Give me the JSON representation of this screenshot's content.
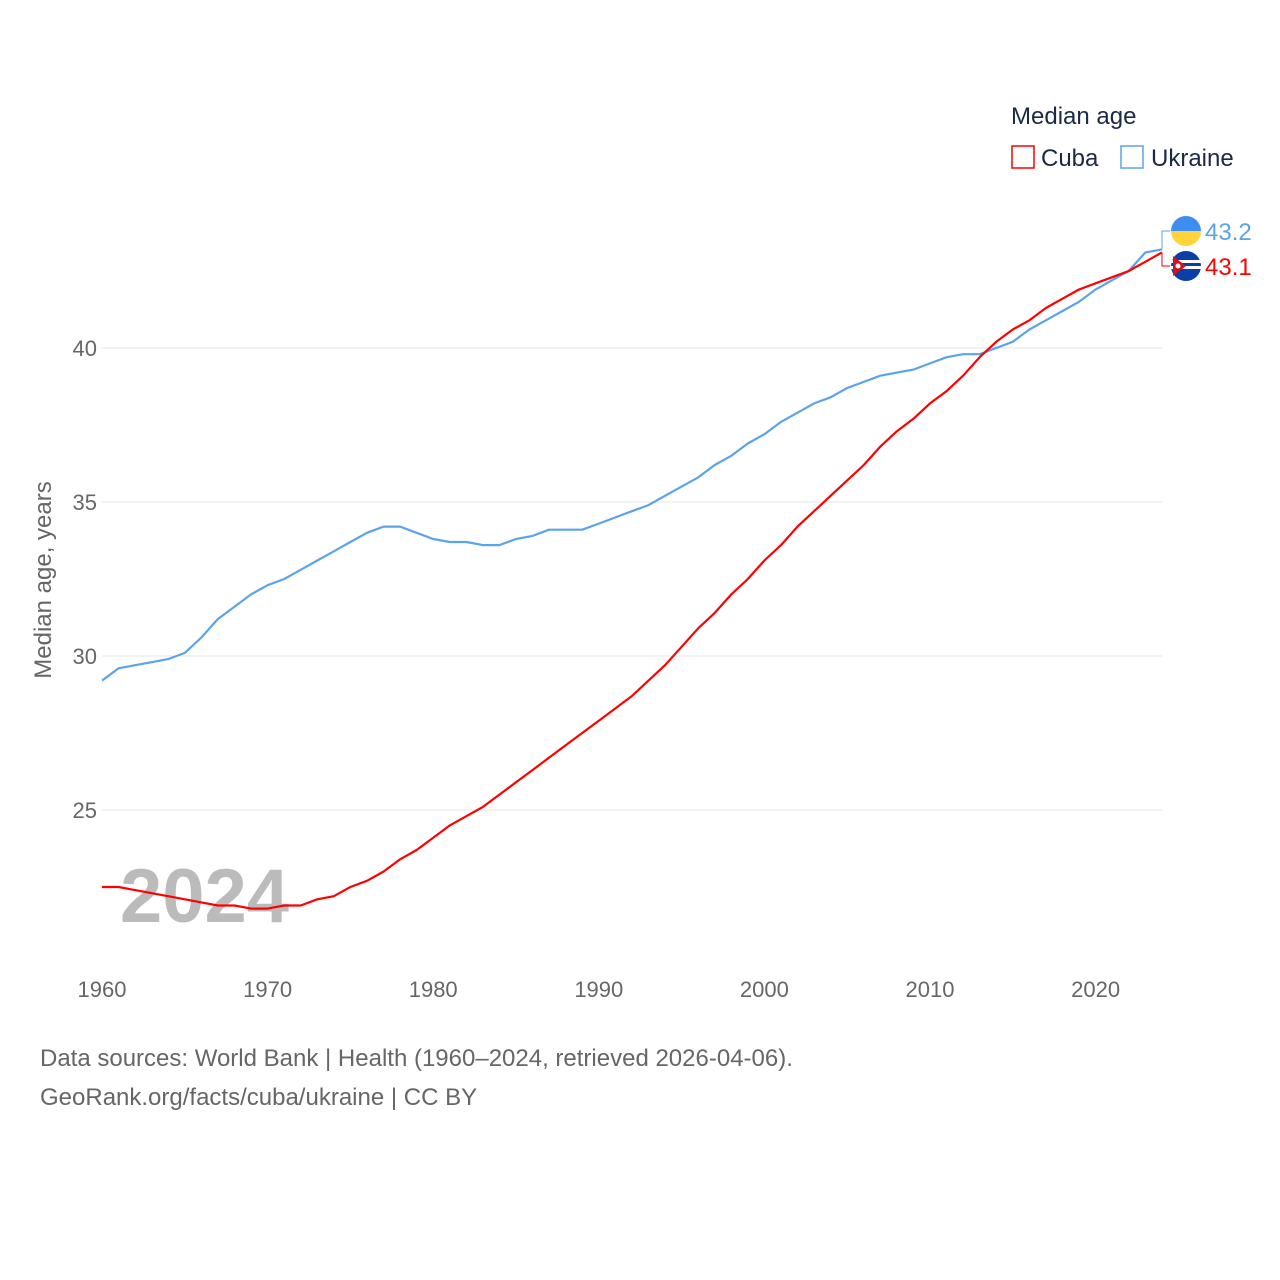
{
  "chart_data": {
    "type": "line",
    "title": "",
    "xlabel": "",
    "ylabel": "Median age, years",
    "xlim": [
      1960,
      2024
    ],
    "ylim": [
      21,
      44.5
    ],
    "x_ticks": [
      1960,
      1970,
      1980,
      1990,
      2000,
      2010,
      2020
    ],
    "y_ticks": [
      25,
      30,
      35,
      40
    ],
    "grid": true,
    "legend": {
      "title": "Median age",
      "position": "top-right"
    },
    "year_watermark": "2024",
    "x": [
      1960,
      1961,
      1962,
      1963,
      1964,
      1965,
      1966,
      1967,
      1968,
      1969,
      1970,
      1971,
      1972,
      1973,
      1974,
      1975,
      1976,
      1977,
      1978,
      1979,
      1980,
      1981,
      1982,
      1983,
      1984,
      1985,
      1986,
      1987,
      1988,
      1989,
      1990,
      1991,
      1992,
      1993,
      1994,
      1995,
      1996,
      1997,
      1998,
      1999,
      2000,
      2001,
      2002,
      2003,
      2004,
      2005,
      2006,
      2007,
      2008,
      2009,
      2010,
      2011,
      2012,
      2013,
      2014,
      2015,
      2016,
      2017,
      2018,
      2019,
      2020,
      2021,
      2022,
      2023,
      2024
    ],
    "series": [
      {
        "name": "Cuba",
        "color": "#ff0000",
        "end_label": "43.1",
        "values": [
          22.5,
          22.5,
          22.4,
          22.3,
          22.2,
          22.1,
          22.0,
          21.9,
          21.9,
          21.8,
          21.8,
          21.9,
          21.9,
          22.1,
          22.2,
          22.5,
          22.7,
          23.0,
          23.4,
          23.7,
          24.1,
          24.5,
          24.8,
          25.1,
          25.5,
          25.9,
          26.3,
          26.7,
          27.1,
          27.5,
          27.9,
          28.3,
          28.7,
          29.2,
          29.7,
          30.3,
          30.9,
          31.4,
          32.0,
          32.5,
          33.1,
          33.6,
          34.2,
          34.7,
          35.2,
          35.7,
          36.2,
          36.8,
          37.3,
          37.7,
          38.2,
          38.6,
          39.1,
          39.7,
          40.2,
          40.6,
          40.9,
          41.3,
          41.6,
          41.9,
          42.1,
          42.3,
          42.5,
          42.8,
          43.1
        ]
      },
      {
        "name": "Ukraine",
        "color": "#5ba3ea",
        "end_label": "43.2",
        "values": [
          29.2,
          29.6,
          29.7,
          29.8,
          29.9,
          30.1,
          30.6,
          31.2,
          31.6,
          32.0,
          32.3,
          32.5,
          32.8,
          33.1,
          33.4,
          33.7,
          34.0,
          34.2,
          34.2,
          34.0,
          33.8,
          33.7,
          33.7,
          33.6,
          33.6,
          33.8,
          33.9,
          34.1,
          34.1,
          34.1,
          34.3,
          34.5,
          34.7,
          34.9,
          35.2,
          35.5,
          35.8,
          36.2,
          36.5,
          36.9,
          37.2,
          37.6,
          37.9,
          38.2,
          38.4,
          38.7,
          38.9,
          39.1,
          39.2,
          39.3,
          39.5,
          39.7,
          39.8,
          39.8,
          40.0,
          40.2,
          40.6,
          40.9,
          41.2,
          41.5,
          41.9,
          42.2,
          42.5,
          43.1,
          43.2
        ]
      }
    ]
  },
  "footer": {
    "line1": "Data sources: World Bank | Health (1960–2024, retrieved 2026-04-06).",
    "line2": "GeoRank.org/facts/cuba/ukraine | CC BY"
  }
}
